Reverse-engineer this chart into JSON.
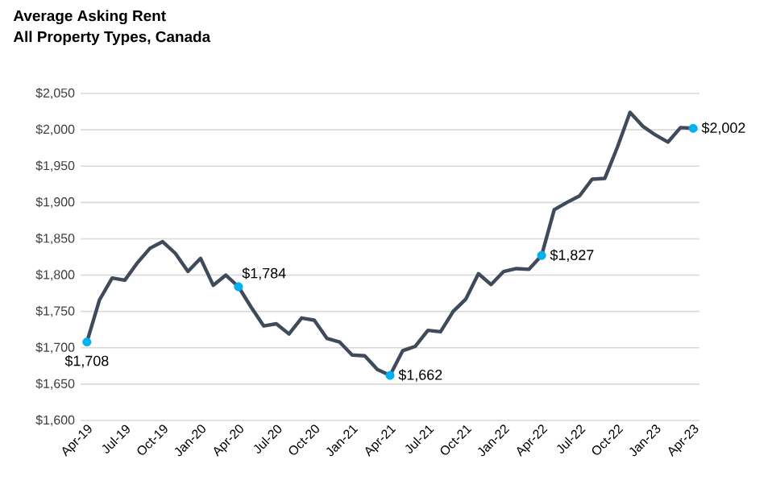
{
  "chart_data": {
    "type": "line",
    "title": "Average Asking Rent",
    "subtitle": "All Property Types, Canada",
    "categories": [
      "Apr-19",
      null,
      null,
      "Jul-19",
      null,
      null,
      "Oct-19",
      null,
      null,
      "Jan-20",
      null,
      null,
      "Apr-20",
      null,
      null,
      "Jul-20",
      null,
      null,
      "Oct-20",
      null,
      null,
      "Jan-21",
      null,
      null,
      "Apr-21",
      null,
      null,
      "Jul-21",
      null,
      null,
      "Oct-21",
      null,
      null,
      "Jan-22",
      null,
      null,
      "Apr-22",
      null,
      null,
      "Jul-22",
      null,
      null,
      "Oct-22",
      null,
      null,
      "Jan-23",
      null,
      null,
      "Apr-23"
    ],
    "series": [
      {
        "marker": "none",
        "color": "#3f4b5b",
        "values": [
          1708,
          1766,
          1796,
          1793,
          1817,
          1837,
          1846,
          1830,
          1805,
          1823,
          1786,
          1800,
          1784,
          1756,
          1730,
          1733,
          1719,
          1741,
          1738,
          1713,
          1708,
          1690,
          1689,
          1670,
          1662,
          1696,
          1702,
          1724,
          1722,
          1750,
          1767,
          1802,
          1787,
          1805,
          1809,
          1808,
          1827,
          1890,
          1900,
          1909,
          1932,
          1933,
          1976,
          2024,
          2005,
          1993,
          1983,
          2003,
          2002
        ]
      },
      {
        "type": "scatter",
        "marker": "circle",
        "color": "#00b0f0",
        "x": [
          "Apr-19",
          "Apr-20",
          "Apr-21",
          "Apr-22",
          "Apr-23"
        ],
        "values": [
          1708,
          1784,
          1662,
          1827,
          2002
        ],
        "value_labels": [
          "$1,708",
          "$1,784",
          "$1,662",
          "$1,827",
          "$2,002"
        ]
      }
    ],
    "ylim": [
      1600,
      2050
    ],
    "yticks": [
      {
        "value": 1600,
        "label": "$1,600"
      },
      {
        "value": 1650,
        "label": "$1,650"
      },
      {
        "value": 1700,
        "label": "$1,700"
      },
      {
        "value": 1750,
        "label": "$1,750"
      },
      {
        "value": 1800,
        "label": "$1,800"
      },
      {
        "value": 1850,
        "label": "$1,850"
      },
      {
        "value": 1900,
        "label": "$1,900"
      },
      {
        "value": 1950,
        "label": "$1,950"
      },
      {
        "value": 2000,
        "label": "$2,000"
      },
      {
        "value": 2050,
        "label": "$2,050"
      }
    ],
    "grid": "y",
    "line_style": "solid"
  }
}
